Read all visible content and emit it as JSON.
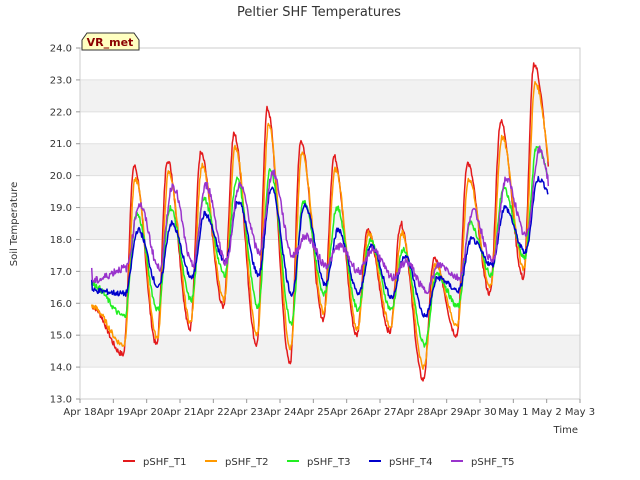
{
  "chart_data": {
    "type": "line",
    "title": "Peltier SHF Temperatures",
    "xlabel": "Time",
    "ylabel": "Soil Temperature",
    "badge": "VR_met",
    "ylim": [
      13.0,
      24.0
    ],
    "yticks": [
      "13.0",
      "14.0",
      "15.0",
      "16.0",
      "17.0",
      "18.0",
      "19.0",
      "20.0",
      "21.0",
      "22.0",
      "23.0",
      "24.0"
    ],
    "xlim": [
      0,
      15
    ],
    "xticks": [
      "Apr 18",
      "Apr 19",
      "Apr 20",
      "Apr 21",
      "Apr 22",
      "Apr 23",
      "Apr 24",
      "Apr 25",
      "Apr 26",
      "Apr 27",
      "Apr 28",
      "Apr 29",
      "Apr 30",
      "May 1",
      "May 2",
      "May 3"
    ],
    "grid": true,
    "legend_position": "bottom",
    "days": [
      "Apr 18",
      "Apr 19",
      "Apr 20",
      "Apr 21",
      "Apr 22",
      "Apr 23",
      "Apr 24",
      "Apr 25",
      "Apr 26",
      "Apr 27",
      "Apr 28",
      "Apr 29",
      "Apr 30",
      "May 1",
      "May 2"
    ],
    "series": [
      {
        "name": "pSHF_T1",
        "color": "#e31a1c",
        "daily_min": [
          15.3,
          14.4,
          14.7,
          15.2,
          15.9,
          14.7,
          14.1,
          15.5,
          15.0,
          15.1,
          13.6,
          15.0,
          16.3,
          16.8,
          19.0
        ],
        "daily_max": [
          15.9,
          20.3,
          20.5,
          20.7,
          21.3,
          22.1,
          21.1,
          20.6,
          18.3,
          18.5,
          17.4,
          20.4,
          21.7,
          23.5,
          23.3
        ]
      },
      {
        "name": "pSHF_T2",
        "color": "#ff9900",
        "daily_min": [
          15.4,
          14.7,
          14.9,
          15.4,
          16.1,
          15.0,
          14.6,
          15.7,
          15.2,
          15.3,
          14.0,
          15.3,
          16.5,
          17.1,
          19.2
        ],
        "daily_max": [
          15.9,
          19.9,
          20.1,
          20.3,
          20.9,
          21.6,
          20.7,
          20.2,
          18.2,
          18.2,
          17.2,
          19.9,
          21.2,
          22.9,
          22.8
        ]
      },
      {
        "name": "pSHF_T3",
        "color": "#22ee22",
        "daily_min": [
          16.0,
          15.6,
          15.8,
          16.1,
          16.9,
          15.9,
          15.4,
          16.3,
          15.8,
          15.8,
          14.7,
          15.9,
          16.9,
          17.4,
          19.2
        ],
        "daily_max": [
          16.6,
          18.8,
          19.0,
          19.3,
          19.9,
          20.2,
          19.2,
          19.0,
          18.0,
          17.7,
          16.9,
          18.5,
          19.6,
          20.9,
          21.0
        ]
      },
      {
        "name": "pSHF_T4",
        "color": "#0000cc",
        "daily_min": [
          16.4,
          16.3,
          16.5,
          16.8,
          17.3,
          16.9,
          16.3,
          16.6,
          16.3,
          16.2,
          15.6,
          16.4,
          17.2,
          17.6,
          19.0
        ],
        "daily_max": [
          16.8,
          18.3,
          18.5,
          18.8,
          19.2,
          19.6,
          19.1,
          18.3,
          17.8,
          17.5,
          16.8,
          18.0,
          19.0,
          19.9,
          20.2
        ]
      },
      {
        "name": "pSHF_T5",
        "color": "#9933cc",
        "daily_min": [
          16.7,
          17.1,
          17.1,
          17.2,
          17.3,
          17.6,
          17.5,
          17.2,
          17.0,
          16.8,
          16.4,
          16.8,
          17.3,
          18.1,
          18.4
        ],
        "daily_max": [
          17.0,
          19.1,
          19.7,
          19.7,
          19.7,
          20.1,
          18.1,
          17.8,
          17.7,
          17.3,
          17.2,
          18.9,
          19.9,
          20.8,
          20.7
        ]
      }
    ]
  }
}
